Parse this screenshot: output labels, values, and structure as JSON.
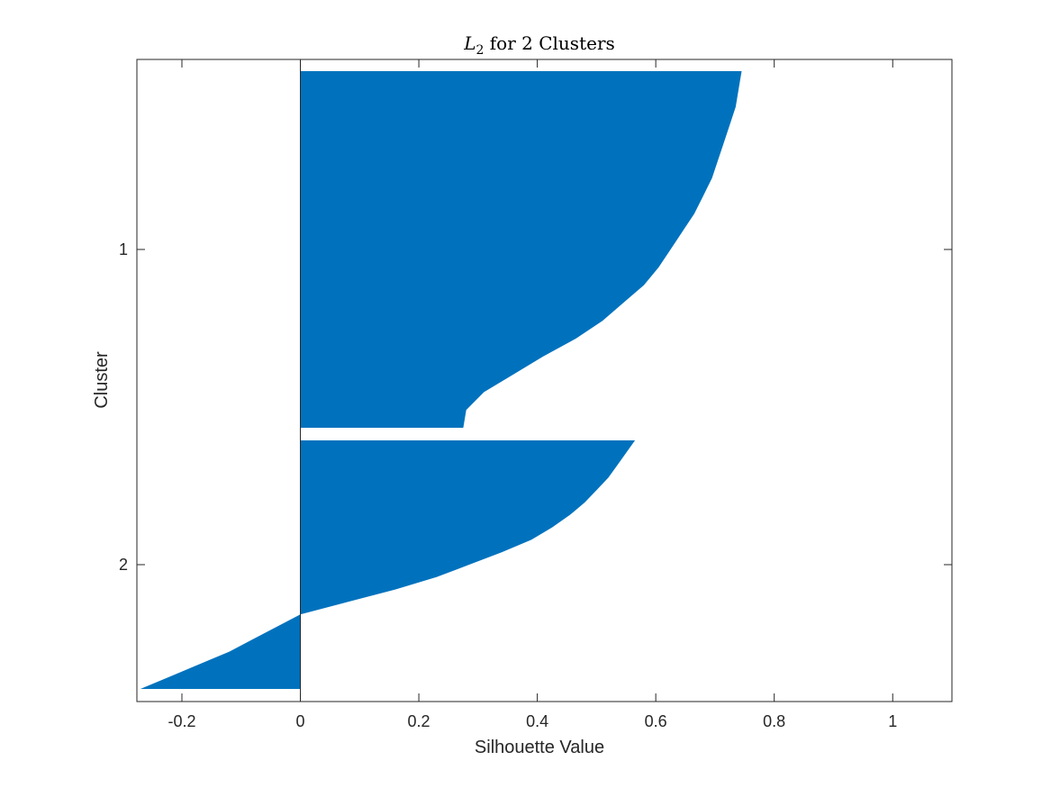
{
  "chart_data": {
    "type": "silhouette",
    "title": {
      "var": "L",
      "sub": "2",
      "rest": " for 2 Clusters"
    },
    "xlabel": "Silhouette Value",
    "ylabel": "Cluster",
    "xlim": [
      -0.276,
      1.1
    ],
    "xticks": [
      -0.2,
      0,
      0.2,
      0.4,
      0.6,
      0.8,
      1
    ],
    "xtick_labels": [
      "-0.2",
      "0",
      "0.2",
      "0.4",
      "0.6",
      "0.8",
      "1"
    ],
    "yticks": [
      {
        "cluster": 1,
        "label": "1"
      },
      {
        "cluster": 2,
        "label": "2"
      }
    ],
    "bar_color": "#0072BD",
    "grid": false,
    "clusters": [
      {
        "label": "1",
        "rank": [
          0,
          0.05,
          0.1,
          0.15,
          0.2,
          0.25,
          0.3,
          0.35,
          0.4,
          0.45,
          0.5,
          0.55,
          0.6,
          0.65,
          0.7,
          0.75,
          0.8,
          0.85,
          0.9,
          0.95,
          1
        ],
        "values": [
          0.745,
          0.74,
          0.735,
          0.725,
          0.715,
          0.705,
          0.695,
          0.68,
          0.665,
          0.645,
          0.625,
          0.605,
          0.58,
          0.545,
          0.51,
          0.465,
          0.41,
          0.36,
          0.31,
          0.28,
          0.275
        ]
      },
      {
        "label": "2",
        "rank": [
          0,
          0.05,
          0.1,
          0.15,
          0.2,
          0.25,
          0.3,
          0.35,
          0.4,
          0.45,
          0.5,
          0.55,
          0.6,
          0.65,
          0.7,
          0.75,
          0.8,
          0.85,
          0.9,
          0.95,
          1
        ],
        "values": [
          0.565,
          0.55,
          0.535,
          0.52,
          0.5,
          0.48,
          0.455,
          0.425,
          0.39,
          0.34,
          0.285,
          0.23,
          0.16,
          0.08,
          0.0,
          -0.04,
          -0.08,
          -0.12,
          -0.17,
          -0.22,
          -0.27
        ]
      }
    ]
  }
}
